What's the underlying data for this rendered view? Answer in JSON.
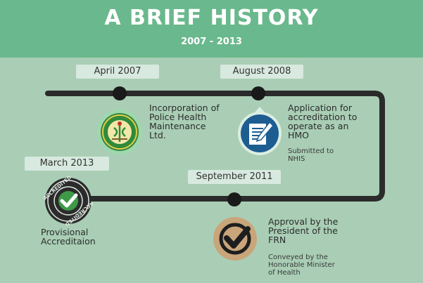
{
  "header": {
    "title": "A BRIEF HISTORY",
    "subtitle": "2007 - 2013"
  },
  "colors": {
    "header_bg": "#6ab88d",
    "page_bg": "#a9ceb5",
    "track": "#2b2b2b",
    "label_bg": "#d8e9df",
    "badge_blue": "#1d5d92",
    "badge_green": "#2f8b3b",
    "badge_gold": "#c9a57a"
  },
  "milestones": [
    {
      "date": "April 2007",
      "title_lines": [
        "Incorporation of",
        "Police Health",
        "Maintenance",
        "Ltd."
      ],
      "note_lines": [],
      "icon": "police-health-crest-icon"
    },
    {
      "date": "August 2008",
      "title_lines": [
        "Application for",
        "accreditation to",
        "operate as an",
        "HMO"
      ],
      "note_lines": [
        "Submitted to",
        "NHIS"
      ],
      "icon": "document-pen-icon"
    },
    {
      "date": "September 2011",
      "title_lines": [
        "Approval by the",
        "President of the",
        "FRN"
      ],
      "note_lines": [
        "Conveyed by the",
        "Honorable Minister",
        "of Health"
      ],
      "icon": "approval-check-icon"
    },
    {
      "date": "March 2013",
      "title_lines": [
        "Provisional",
        "Accreditaion"
      ],
      "note_lines": [],
      "icon": "accredited-seal-icon",
      "seal_text": "ACCREDITED"
    }
  ]
}
